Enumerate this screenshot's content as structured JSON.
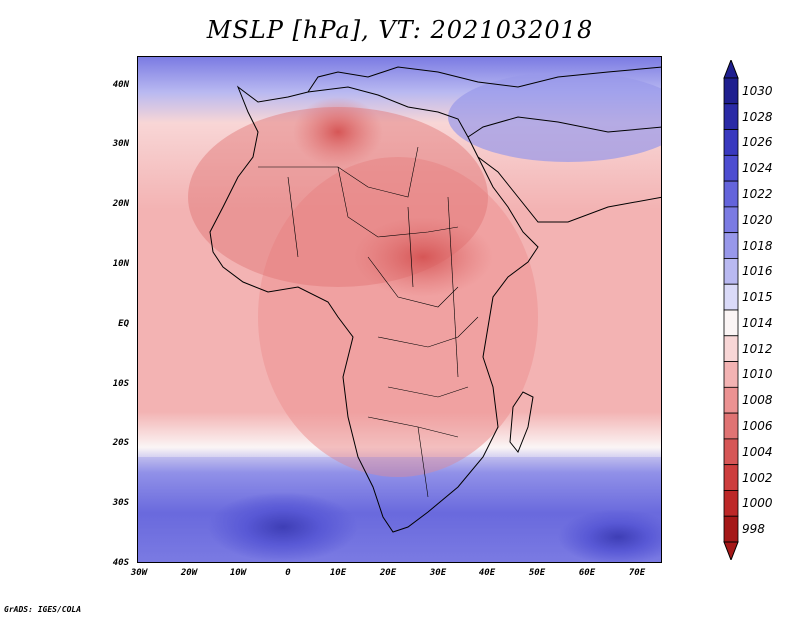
{
  "title": "MSLP [hPa], VT: 2021032018",
  "axes": {
    "lat_labels": [
      "40N",
      "30N",
      "20N",
      "10N",
      "EQ",
      "10S",
      "20S",
      "30S",
      "40S"
    ],
    "lon_labels": [
      "30W",
      "20W",
      "10W",
      "0",
      "10E",
      "20E",
      "30E",
      "40E",
      "50E",
      "60E",
      "70E"
    ]
  },
  "colorbar": {
    "labels": [
      "1030",
      "1028",
      "1026",
      "1024",
      "1022",
      "1020",
      "1018",
      "1016",
      "1015",
      "1014",
      "1012",
      "1010",
      "1008",
      "1006",
      "1004",
      "1002",
      "1000",
      "998"
    ],
    "colors": [
      "#1f1f8f",
      "#2a2aa6",
      "#3939bf",
      "#4d4dd1",
      "#6464db",
      "#7b7be3",
      "#9898ea",
      "#b9b9f1",
      "#dadaf8",
      "#fbf5f5",
      "#f8d6d6",
      "#f3b3b3",
      "#ec9292",
      "#e07373",
      "#d65656",
      "#cd3d3d",
      "#bd2828",
      "#a51818"
    ]
  },
  "credit": "GrADS: IGES/COLA"
}
